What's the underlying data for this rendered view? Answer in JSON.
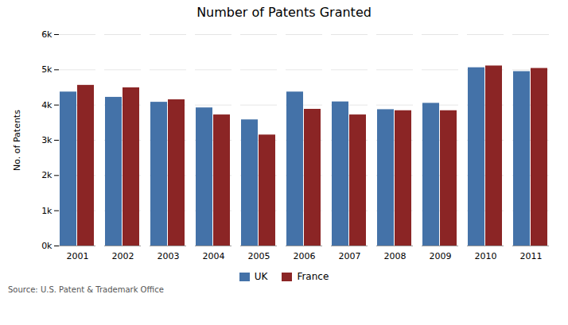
{
  "chart_data": {
    "type": "bar",
    "title": "Number of Patents Granted",
    "ylabel": "No. of Patents",
    "annotations": [
      "Source: U.S. Patent & Trademark Office"
    ],
    "categories": [
      "2001",
      "2002",
      "2003",
      "2004",
      "2005",
      "2006",
      "2007",
      "2008",
      "2009",
      "2010",
      "2011"
    ],
    "series": [
      {
        "name": "UK",
        "color": "#4472a8",
        "values": [
          4370,
          4220,
          4080,
          3920,
          3580,
          4370,
          4090,
          3870,
          4050,
          5060,
          4950
        ]
      },
      {
        "name": "France",
        "color": "#8b2525",
        "values": [
          4560,
          4490,
          4150,
          3720,
          3150,
          3880,
          3720,
          3840,
          3840,
          5110,
          5040
        ]
      }
    ],
    "ylim": [
      0,
      6000
    ],
    "yticks": [
      {
        "value": 0,
        "label": "0k"
      },
      {
        "value": 1000,
        "label": "1k"
      },
      {
        "value": 2000,
        "label": "2k"
      },
      {
        "value": 3000,
        "label": "3k"
      },
      {
        "value": 4000,
        "label": "4k"
      },
      {
        "value": 5000,
        "label": "5k"
      },
      {
        "value": 6000,
        "label": "6k"
      }
    ],
    "grid": true,
    "legend": "bottom"
  }
}
